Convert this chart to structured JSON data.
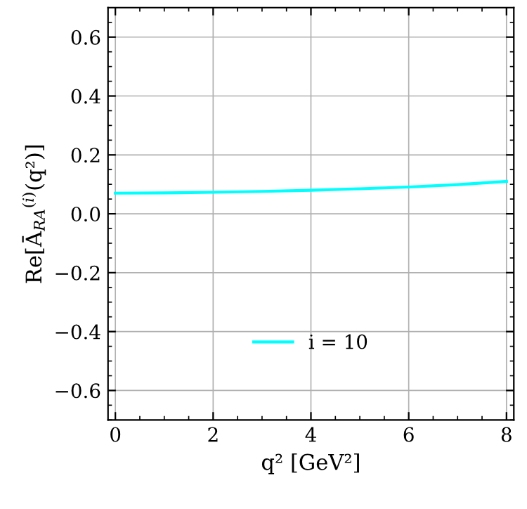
{
  "chart_data": {
    "type": "line",
    "xlabel": "q² [GeV²]",
    "ylabel": "Re[Ā$_{RA}$$^{(i)}$(q²)]",
    "x": [
      0,
      1,
      2,
      3,
      4,
      5,
      6,
      7,
      8
    ],
    "series": [
      {
        "name": "i = 10",
        "color": "#00ffff",
        "values": [
          0.07,
          0.071,
          0.073,
          0.076,
          0.08,
          0.085,
          0.091,
          0.099,
          0.11
        ]
      }
    ],
    "xlim": [
      -0.15,
      8.15
    ],
    "xticks": [
      0,
      2,
      4,
      6,
      8
    ],
    "ylim": [
      -0.7,
      0.7
    ],
    "yticks": [
      {
        "value": -0.6,
        "label": "−0.6"
      },
      {
        "value": -0.4,
        "label": "−0.4"
      },
      {
        "value": -0.2,
        "label": "−0.2"
      },
      {
        "value": 0.0,
        "label": "0.0"
      },
      {
        "value": 0.2,
        "label": "0.2"
      },
      {
        "value": 0.4,
        "label": "0.4"
      },
      {
        "value": 0.6,
        "label": "0.6"
      }
    ],
    "grid": true,
    "legend": "bottom",
    "line_style": "solid",
    "marker": "none"
  }
}
